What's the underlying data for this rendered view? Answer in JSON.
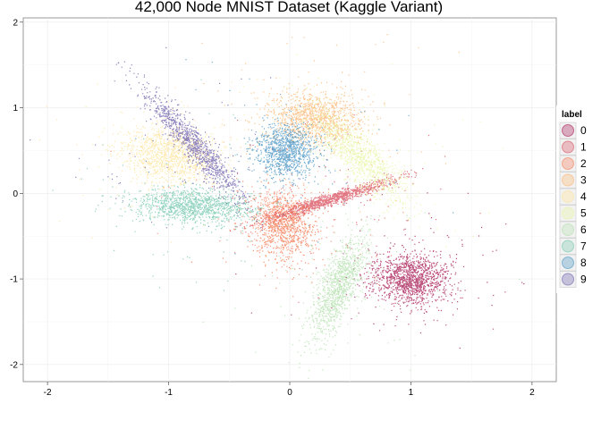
{
  "chart_data": {
    "type": "scatter",
    "title": "42,000 Node MNIST Dataset (Kaggle Variant)",
    "xlabel": "",
    "ylabel": "",
    "xlim": [
      -2.2,
      2.2
    ],
    "ylim": [
      -2.2,
      2.05
    ],
    "x_ticks": [
      "-2",
      "-1",
      "0",
      "1",
      "2"
    ],
    "y_ticks": [
      "-2",
      "-1",
      "0",
      "1",
      "2"
    ],
    "grid": true,
    "legend": {
      "title": "label",
      "position": "right"
    },
    "series": [
      {
        "name": "0",
        "color": "#9E0142",
        "center": [
          1.0,
          -1.0
        ],
        "spread": [
          0.16,
          0.15
        ],
        "rotation": -25,
        "points": 1400
      },
      {
        "name": "1",
        "color": "#D53E4F",
        "center": [
          0.32,
          -0.08
        ],
        "spread": [
          0.3,
          0.035
        ],
        "rotation": 24,
        "points": 1200
      },
      {
        "name": "2",
        "color": "#F46D43",
        "center": [
          -0.06,
          -0.35
        ],
        "spread": [
          0.13,
          0.2
        ],
        "rotation": 10,
        "points": 1200
      },
      {
        "name": "3",
        "color": "#FDAE61",
        "center": [
          0.22,
          0.88
        ],
        "spread": [
          0.2,
          0.15
        ],
        "rotation": 0,
        "points": 1200
      },
      {
        "name": "4",
        "color": "#FEE08B",
        "center": [
          -0.98,
          0.45
        ],
        "spread": [
          0.2,
          0.17
        ],
        "rotation": -20,
        "points": 1200
      },
      {
        "name": "5",
        "color": "#E6F598",
        "center": [
          0.55,
          0.45
        ],
        "spread": [
          0.1,
          0.35
        ],
        "rotation": 35,
        "points": 1100
      },
      {
        "name": "6",
        "color": "#ABDDA4",
        "center": [
          0.4,
          -1.1
        ],
        "spread": [
          0.08,
          0.32
        ],
        "rotation": -15,
        "points": 1200
      },
      {
        "name": "7",
        "color": "#66C2A5",
        "center": [
          -0.8,
          -0.15
        ],
        "spread": [
          0.25,
          0.1
        ],
        "rotation": -5,
        "points": 1300
      },
      {
        "name": "8",
        "color": "#3288BD",
        "center": [
          -0.03,
          0.5
        ],
        "spread": [
          0.13,
          0.16
        ],
        "rotation": 0,
        "points": 1100
      },
      {
        "name": "9",
        "color": "#5E4FA2",
        "center": [
          -0.78,
          0.55
        ],
        "spread": [
          0.06,
          0.38
        ],
        "rotation": 32,
        "points": 1100
      }
    ]
  }
}
